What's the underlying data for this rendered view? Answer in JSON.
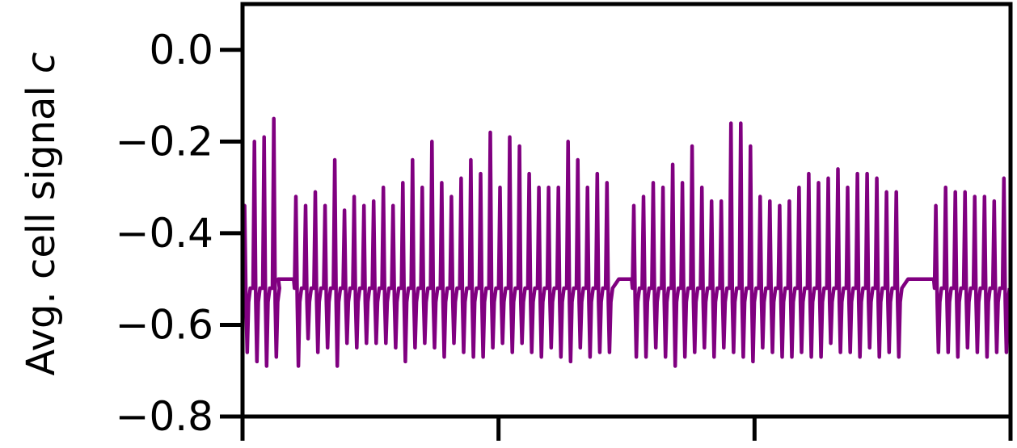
{
  "chart_data": {
    "type": "line",
    "title": "",
    "ylabel": "Avg. cell signal ",
    "ylabel_var": "c",
    "xlabel": "",
    "ylim": [
      -0.8,
      0.1
    ],
    "yticks": [
      {
        "value": 0.0,
        "label": "0.0"
      },
      {
        "value": -0.2,
        "label": "−0.2"
      },
      {
        "value": -0.4,
        "label": "−0.4"
      },
      {
        "value": -0.6,
        "label": "−0.6"
      },
      {
        "value": -0.8,
        "label": "−0.8"
      }
    ],
    "xlim": [
      0,
      3
    ],
    "xticks": [
      0,
      1,
      2,
      3
    ],
    "grid": false,
    "legend": "none",
    "color": "#800080",
    "series": [
      {
        "peaks": [
          -0.34,
          -0.2,
          -0.19,
          -0.15,
          -0.32,
          -0.34,
          -0.31,
          -0.34,
          -0.24,
          -0.35,
          -0.32,
          -0.34,
          -0.33,
          -0.3,
          -0.34,
          -0.29,
          -0.24,
          -0.3,
          -0.2,
          -0.29,
          -0.32,
          -0.28,
          -0.24,
          -0.27,
          -0.18,
          -0.3,
          -0.19,
          -0.21,
          -0.27,
          -0.3,
          -0.3,
          -0.3,
          -0.2,
          -0.24,
          -0.3,
          -0.27,
          -0.29,
          -0.34,
          -0.32,
          -0.29,
          -0.3,
          -0.25,
          -0.29,
          -0.21,
          -0.3,
          -0.33,
          -0.33,
          -0.16,
          -0.16,
          -0.21,
          -0.32,
          -0.33,
          -0.34,
          -0.33,
          -0.3,
          -0.27,
          -0.29,
          -0.28,
          -0.26,
          -0.3,
          -0.27,
          -0.27,
          -0.28,
          -0.31,
          -0.31,
          -0.34,
          -0.3,
          -0.31,
          -0.31,
          -0.32,
          -0.32,
          -0.33,
          -0.28,
          -0.26,
          -0.31,
          -0.25,
          -0.24,
          -0.21,
          -0.21
        ],
        "troughs": [
          -0.66,
          -0.68,
          -0.69,
          -0.67,
          -0.69,
          -0.63,
          -0.66,
          -0.65,
          -0.69,
          -0.64,
          -0.65,
          -0.64,
          -0.64,
          -0.64,
          -0.65,
          -0.68,
          -0.65,
          -0.64,
          -0.65,
          -0.67,
          -0.64,
          -0.66,
          -0.67,
          -0.67,
          -0.65,
          -0.64,
          -0.66,
          -0.64,
          -0.66,
          -0.67,
          -0.65,
          -0.67,
          -0.68,
          -0.65,
          -0.67,
          -0.66,
          -0.66,
          -0.67,
          -0.67,
          -0.65,
          -0.67,
          -0.69,
          -0.67,
          -0.66,
          -0.65,
          -0.67,
          -0.65,
          -0.66,
          -0.67,
          -0.68,
          -0.65,
          -0.66,
          -0.67,
          -0.67,
          -0.66,
          -0.67,
          -0.67,
          -0.64,
          -0.66,
          -0.66,
          -0.67,
          -0.65,
          -0.67,
          -0.66,
          -0.67,
          -0.66,
          -0.66,
          -0.67,
          -0.65,
          -0.66,
          -0.67,
          -0.66,
          -0.66,
          -0.66,
          -0.67,
          -0.66,
          -0.68,
          -0.66
        ],
        "plateaus": [
          {
            "x_start": 0.14,
            "x_end": 0.2,
            "value": -0.5
          },
          {
            "x_start": 1.47,
            "x_end": 1.52,
            "value": -0.5
          },
          {
            "x_start": 2.6,
            "x_end": 2.7,
            "value": -0.5
          }
        ]
      }
    ]
  }
}
